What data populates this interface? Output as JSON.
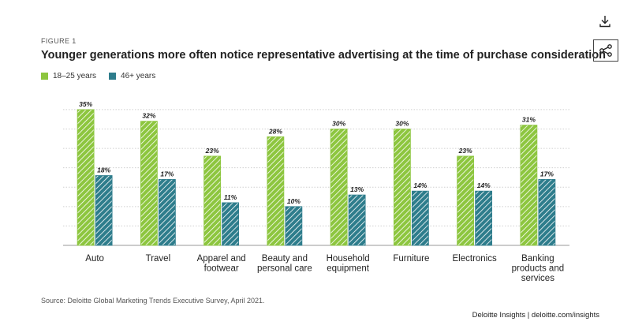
{
  "figure_label": "FIGURE 1",
  "title": "Younger generations more often notice representative advertising at the time of purchase consideration",
  "source": "Source: Deloitte Global Marketing Trends Executive Survey, April 2021.",
  "brand": "Deloitte Insights | deloitte.com/insights",
  "icons": {
    "download": "download-icon",
    "share": "share-icon"
  },
  "chart_data": {
    "type": "bar",
    "categories": [
      "Auto",
      "Travel",
      "Apparel and footwear",
      "Beauty and personal care",
      "Household equipment",
      "Furniture",
      "Electronics",
      "Banking products and services"
    ],
    "category_lines": [
      [
        "Auto"
      ],
      [
        "Travel"
      ],
      [
        "Apparel and",
        "footwear"
      ],
      [
        "Beauty and",
        "personal care"
      ],
      [
        "Household",
        "equipment"
      ],
      [
        "Furniture"
      ],
      [
        "Electronics"
      ],
      [
        "Banking",
        "products and",
        "services"
      ]
    ],
    "series": [
      {
        "name": "18–25 years",
        "color": "#8dc63f",
        "values": [
          35,
          32,
          23,
          28,
          30,
          30,
          23,
          31
        ]
      },
      {
        "name": "46+ years",
        "color": "#2e7d8c",
        "values": [
          18,
          17,
          11,
          10,
          13,
          14,
          14,
          17
        ]
      }
    ],
    "value_suffix": "%",
    "ylim": [
      0,
      36
    ],
    "grid": true,
    "legend": "top-left"
  }
}
